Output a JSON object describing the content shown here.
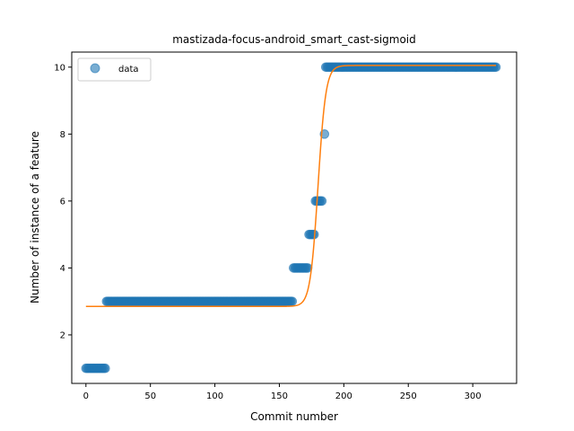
{
  "chart_data": {
    "type": "scatter",
    "title": "mastizada-focus-android_smart_cast-sigmoid",
    "xlabel": "Commit number",
    "ylabel": "Number of instance of a feature",
    "xlim": [
      -11,
      334
    ],
    "ylim": [
      0.55,
      10.45
    ],
    "xticks": [
      0,
      50,
      100,
      150,
      200,
      250,
      300
    ],
    "yticks": [
      2,
      4,
      6,
      8,
      10
    ],
    "legend": {
      "placement": "top-left",
      "entries": [
        "data"
      ]
    },
    "colors": {
      "data": "#1f77b4",
      "fit": "#ff7f0e"
    },
    "series": [
      {
        "name": "data",
        "kind": "points",
        "segments": [
          {
            "x_from": 0,
            "x_to": 15,
            "y": 1
          },
          {
            "x_from": 16,
            "x_to": 160,
            "y": 3
          },
          {
            "x_from": 161,
            "x_to": 172,
            "y": 4
          },
          {
            "x_from": 173,
            "x_to": 177,
            "y": 5
          },
          {
            "x_from": 178,
            "x_to": 183,
            "y": 6
          },
          {
            "x_from": 185,
            "x_to": 185,
            "y": 8
          },
          {
            "x_from": 186,
            "x_to": 318,
            "y": 10
          }
        ]
      },
      {
        "kind": "sigmoid-fit",
        "x_range": [
          0,
          318
        ],
        "lower": 2.85,
        "upper": 10.05,
        "midpoint": 180,
        "steepness": 0.33
      }
    ]
  }
}
